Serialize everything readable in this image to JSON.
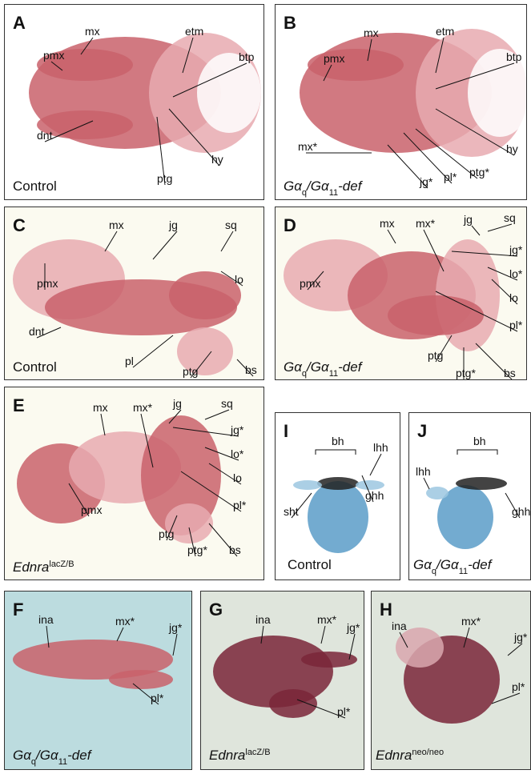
{
  "panels": [
    {
      "letter": "A",
      "caption": [
        {
          "t": "Control"
        }
      ],
      "labels": [
        "pmx",
        "mx",
        "etm",
        "btp",
        "dnt",
        "ptg",
        "hy"
      ]
    },
    {
      "letter": "B",
      "caption": [
        {
          "t": "Gα"
        },
        {
          "sub": "q"
        },
        {
          "t": "/Gα"
        },
        {
          "sub": "11"
        },
        {
          "t": "-def"
        }
      ],
      "labels": [
        "mx",
        "etm",
        "pmx",
        "btp",
        "mx*",
        "hy",
        "ptg*",
        "jg*",
        "pl*"
      ]
    },
    {
      "letter": "C",
      "caption": [
        {
          "t": "Control"
        }
      ],
      "labels": [
        "mx",
        "jg",
        "sq",
        "pmx",
        "lo",
        "dnt",
        "pl",
        "ptg",
        "bs"
      ]
    },
    {
      "letter": "D",
      "caption": [
        {
          "t": "Gα"
        },
        {
          "sub": "q"
        },
        {
          "t": "/Gα"
        },
        {
          "sub": "11"
        },
        {
          "t": "-def"
        }
      ],
      "labels": [
        "mx",
        "mx*",
        "jg",
        "sq",
        "jg*",
        "lo*",
        "lo",
        "pmx",
        "pl*",
        "ptg",
        "ptg*",
        "bs"
      ]
    },
    {
      "letter": "E",
      "caption": [
        {
          "t": "Ednra"
        },
        {
          "sup": "lacZ/B"
        }
      ],
      "labels": [
        "mx",
        "mx*",
        "jg",
        "sq",
        "jg*",
        "lo*",
        "lo",
        "pmx",
        "pl*",
        "ptg",
        "ptg*",
        "bs"
      ]
    },
    {
      "letter": "I",
      "caption": [
        {
          "t": "Control"
        }
      ],
      "labels": [
        "bh",
        "lhh",
        "sht",
        "ghh"
      ]
    },
    {
      "letter": "J",
      "caption": [
        {
          "t": "Gα"
        },
        {
          "sub": "q"
        },
        {
          "t": "/Gα"
        },
        {
          "sub": "11"
        },
        {
          "t": "-def"
        }
      ],
      "labels": [
        "lhh",
        "bh",
        "ghh"
      ]
    },
    {
      "letter": "F",
      "caption": [
        {
          "t": "Gα"
        },
        {
          "sub": "q"
        },
        {
          "t": "/Gα"
        },
        {
          "sub": "11"
        },
        {
          "t": "-def"
        }
      ],
      "labels": [
        "ina",
        "mx*",
        "jg*",
        "pl*"
      ]
    },
    {
      "letter": "G",
      "caption": [
        {
          "t": "Ednra"
        },
        {
          "sup": "lacZ/B"
        }
      ],
      "labels": [
        "ina",
        "mx*",
        "jg*",
        "pl*"
      ]
    },
    {
      "letter": "H",
      "caption": [
        {
          "t": "Ednra"
        },
        {
          "sup": "neo/neo"
        }
      ],
      "labels": [
        "ina",
        "mx*",
        "jg*",
        "pl*"
      ]
    }
  ]
}
